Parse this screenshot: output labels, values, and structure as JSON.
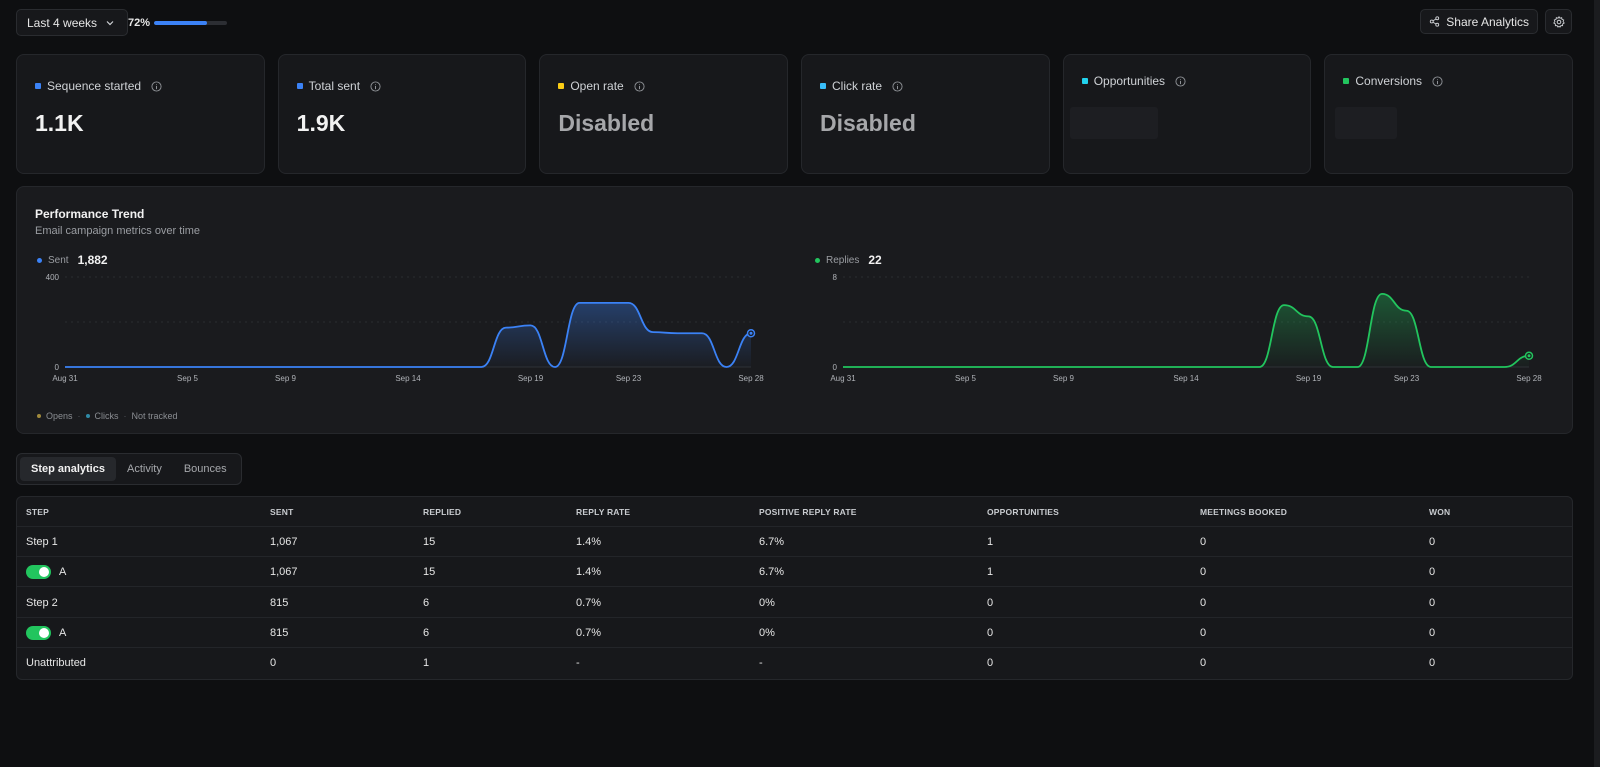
{
  "toolbar": {
    "period_label": "Last 4 weeks",
    "progress_label": "72%",
    "progress_value": 72,
    "share_label": "Share Analytics"
  },
  "colors": {
    "sequence": "#3b82f6",
    "sent": "#3b82f6",
    "open": "#facc15",
    "click": "#38bdf8",
    "opportunities": "#22d3ee",
    "conversions": "#22c55e",
    "replies": "#22c55e"
  },
  "cards": [
    {
      "label": "Sequence started",
      "value": "1.1K"
    },
    {
      "label": "Total sent",
      "value": "1.9K"
    },
    {
      "label": "Open rate",
      "value": "Disabled"
    },
    {
      "label": "Click rate",
      "value": "Disabled"
    },
    {
      "label": "Opportunities",
      "value": ""
    },
    {
      "label": "Conversions",
      "value": ""
    }
  ],
  "performance": {
    "title": "Performance Trend",
    "subtitle": "Email campaign metrics over time",
    "legend": {
      "opens": "Opens",
      "clicks": "Clicks",
      "not_tracked": "Not tracked"
    }
  },
  "chart_data": [
    {
      "type": "area",
      "series": [
        {
          "name": "Sent",
          "total": "1,882"
        }
      ],
      "x": [
        "Aug 31",
        "Sep 5",
        "Sep 9",
        "Sep 14",
        "Sep 19",
        "Sep 23",
        "Sep 28"
      ],
      "ylim": [
        0,
        400
      ],
      "yticks": [
        "400",
        "0"
      ],
      "points": [
        [
          "Aug 31",
          0
        ],
        [
          "Sep 17",
          0
        ],
        [
          "Sep 18",
          175
        ],
        [
          "Sep 19",
          185
        ],
        [
          "Sep 20",
          0
        ],
        [
          "Sep 21",
          285
        ],
        [
          "Sep 22",
          285
        ],
        [
          "Sep 23",
          285
        ],
        [
          "Sep 24",
          155
        ],
        [
          "Sep 25",
          150
        ],
        [
          "Sep 26",
          150
        ],
        [
          "Sep 27",
          0
        ],
        [
          "Sep 28",
          150
        ]
      ]
    },
    {
      "type": "area",
      "series": [
        {
          "name": "Replies",
          "total": "22"
        }
      ],
      "x": [
        "Aug 31",
        "Sep 5",
        "Sep 9",
        "Sep 14",
        "Sep 19",
        "Sep 23",
        "Sep 28"
      ],
      "ylim": [
        0,
        8
      ],
      "yticks": [
        "8",
        "0"
      ],
      "points": [
        [
          "Aug 31",
          0
        ],
        [
          "Sep 17",
          0
        ],
        [
          "Sep 18",
          5.5
        ],
        [
          "Sep 19",
          4.5
        ],
        [
          "Sep 20",
          0
        ],
        [
          "Sep 21",
          0
        ],
        [
          "Sep 22",
          6.5
        ],
        [
          "Sep 23",
          5
        ],
        [
          "Sep 24",
          0
        ],
        [
          "Sep 27",
          0
        ],
        [
          "Sep 28",
          1
        ]
      ]
    }
  ],
  "tabs": [
    "Step analytics",
    "Activity",
    "Bounces"
  ],
  "table": {
    "headers": [
      "STEP",
      "SENT",
      "REPLIED",
      "REPLY RATE",
      "POSITIVE REPLY RATE",
      "OPPORTUNITIES",
      "MEETINGS BOOKED",
      "WON"
    ],
    "rows": [
      {
        "step": "Step 1",
        "toggle": false,
        "cells": [
          "1,067",
          "15",
          "1.4%",
          "6.7%",
          "1",
          "0",
          "0"
        ]
      },
      {
        "step": "A",
        "toggle": true,
        "cells": [
          "1,067",
          "15",
          "1.4%",
          "6.7%",
          "1",
          "0",
          "0"
        ]
      },
      {
        "step": "Step 2",
        "toggle": false,
        "cells": [
          "815",
          "6",
          "0.7%",
          "0%",
          "0",
          "0",
          "0"
        ]
      },
      {
        "step": "A",
        "toggle": true,
        "cells": [
          "815",
          "6",
          "0.7%",
          "0%",
          "0",
          "0",
          "0"
        ]
      },
      {
        "step": "Unattributed",
        "toggle": false,
        "cells": [
          "0",
          "1",
          "-",
          "-",
          "0",
          "0",
          "0"
        ]
      }
    ]
  }
}
